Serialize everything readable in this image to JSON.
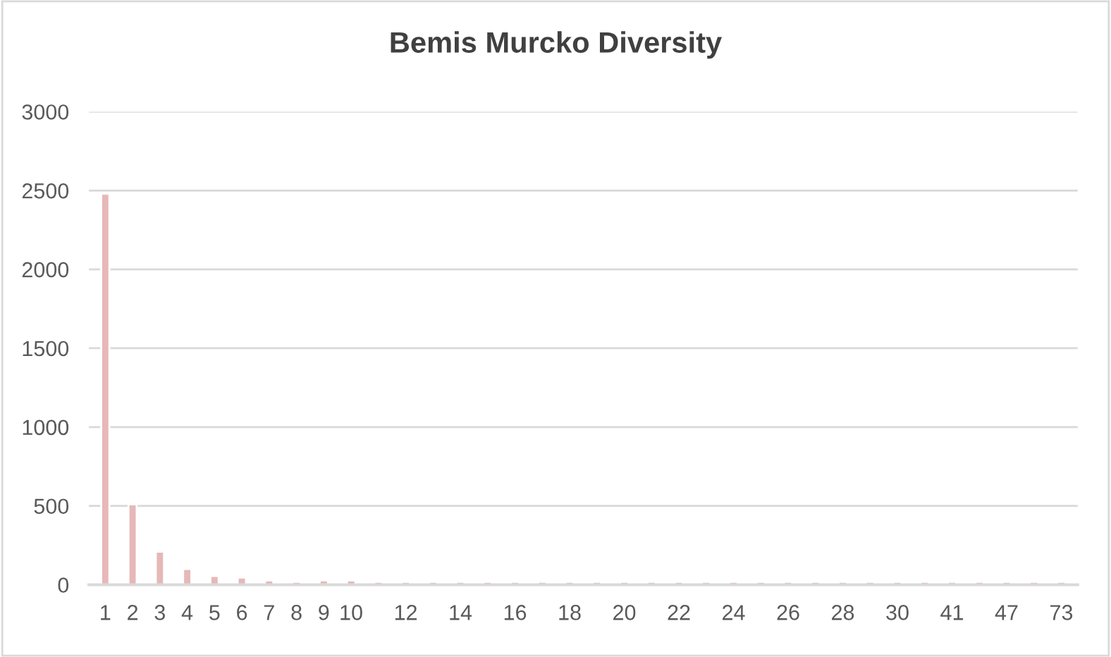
{
  "chart_data": {
    "type": "bar",
    "title": "Bemis Murcko Diversity",
    "categories": [
      "1",
      "2",
      "3",
      "4",
      "5",
      "6",
      "7",
      "8",
      "9",
      "10",
      null,
      "12",
      null,
      "14",
      null,
      "16",
      null,
      "18",
      null,
      "20",
      null,
      "22",
      null,
      "24",
      null,
      "26",
      null,
      "28",
      null,
      "30",
      null,
      "41",
      null,
      "47",
      null,
      "73"
    ],
    "values": [
      2480,
      510,
      210,
      100,
      55,
      45,
      27,
      18,
      27,
      27,
      18,
      18,
      18,
      18,
      18,
      18,
      18,
      18,
      18,
      18,
      18,
      18,
      18,
      18,
      18,
      18,
      18,
      18,
      18,
      18,
      18,
      18,
      18,
      18,
      18,
      18
    ],
    "color": "#e6b8b7",
    "ylim": [
      0,
      3000
    ],
    "yticks": [
      0,
      500,
      1000,
      1500,
      2000,
      2500,
      3000
    ],
    "grid": "y",
    "legend": false
  }
}
